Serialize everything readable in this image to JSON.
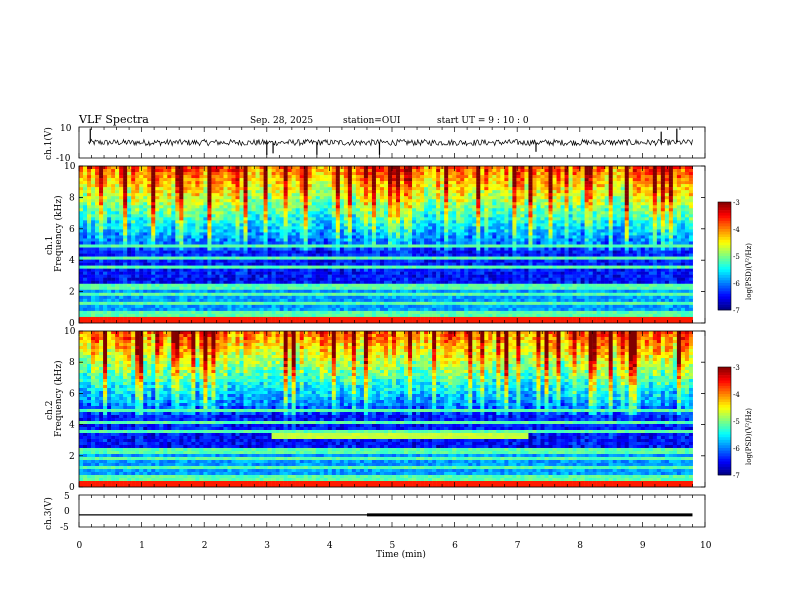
{
  "header": {
    "title": "VLF Spectra",
    "date": "Sep. 28, 2025",
    "station": "station=OUI",
    "start": "start  UT =   9 : 10 : 0"
  },
  "colorbar": {
    "label": "log(PSD)(V²/Hz)",
    "ticks": [
      "-3",
      "-4",
      "-5",
      "-6",
      "-7"
    ],
    "range": [
      -7,
      -3
    ]
  },
  "chart_data": [
    {
      "type": "line",
      "id": "ch1-waveform",
      "ylabel": "ch.1(V)",
      "ylim": [
        -10,
        10
      ],
      "ytick_labels": [
        "10",
        "-10"
      ],
      "x_unit": "min",
      "xlim": [
        0,
        10
      ],
      "baseline_v": 0,
      "noise_amp_v": 2,
      "spikes": [
        {
          "x": 0.18,
          "y": 9
        },
        {
          "x": 3.0,
          "y": -8
        },
        {
          "x": 3.1,
          "y": -7
        },
        {
          "x": 3.8,
          "y": -8
        },
        {
          "x": 4.8,
          "y": -8
        },
        {
          "x": 7.3,
          "y": -6
        },
        {
          "x": 9.3,
          "y": 7
        },
        {
          "x": 9.55,
          "y": 9
        }
      ]
    },
    {
      "type": "heatmap",
      "id": "ch1-spectrogram",
      "ylabel": "ch.1",
      "ylabel2": "Frequency  (kHz)",
      "ylim": [
        0,
        10
      ],
      "ytick_labels": [
        "0",
        "2",
        "4",
        "6",
        "8",
        "10"
      ],
      "xlim": [
        0,
        10
      ],
      "color_scale": "log(PSD) -7 to -3",
      "description_bands_khz": [
        1.2,
        1.8,
        2.3,
        3.5,
        4.2,
        4.9
      ]
    },
    {
      "type": "heatmap",
      "id": "ch2-spectrogram",
      "ylabel": "ch.2",
      "ylabel2": "Frequency  (kHz)",
      "ylim": [
        0,
        10
      ],
      "ytick_labels": [
        "0",
        "2",
        "4",
        "6",
        "8",
        "10"
      ],
      "xlim": [
        0,
        10
      ],
      "color_scale": "log(PSD) -7 to -3",
      "emission_band": {
        "x_start": 3.1,
        "x_end": 7.15,
        "f_low_khz": 3.0,
        "f_high_khz": 3.4
      }
    },
    {
      "type": "line",
      "id": "ch3-waveform",
      "ylabel": "ch.3(V)",
      "ylim": [
        -5,
        5
      ],
      "ytick_labels": [
        "5",
        "0",
        "-5"
      ],
      "xlim": [
        0,
        10
      ],
      "segments": [
        {
          "x_start": 0,
          "x_end": 4.6,
          "y": -1.2
        },
        {
          "x_start": 4.6,
          "x_end": 9.8,
          "y": -1.2,
          "thick": true
        }
      ]
    }
  ],
  "xaxis": {
    "label": "Time  (min)",
    "tick_labels": [
      "0",
      "1",
      "2",
      "3",
      "4",
      "5",
      "6",
      "7",
      "8",
      "9",
      "10"
    ]
  }
}
